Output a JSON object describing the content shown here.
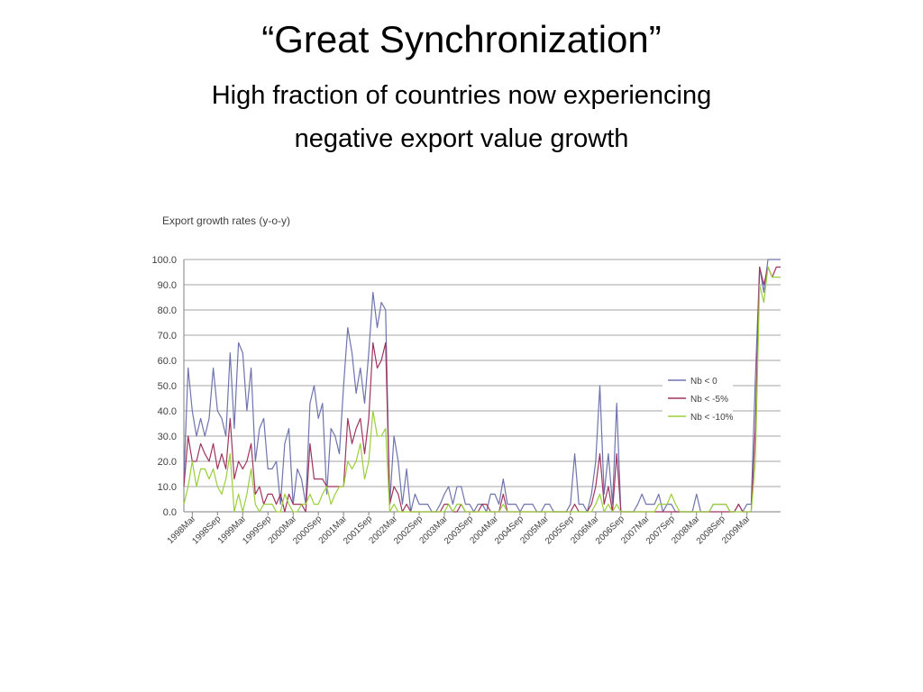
{
  "slide": {
    "title": "“Great Synchronization”",
    "subtitle_line1": "High fraction of countries now experiencing",
    "subtitle_line2": "negative export value growth"
  },
  "chart_data": {
    "type": "line",
    "title": "Export growth rates (y-o-y)",
    "xlabel": "",
    "ylabel": "",
    "ylim": [
      0,
      100
    ],
    "yticks": [
      "0.0",
      "10.0",
      "20.0",
      "30.0",
      "40.0",
      "50.0",
      "60.0",
      "70.0",
      "80.0",
      "90.0",
      "100.0"
    ],
    "grid": true,
    "legend_position": "right",
    "x_tick_labels": [
      "1998Mar",
      "1998Sep",
      "1999Mar",
      "1999Sep",
      "2000Mar",
      "2000Sep",
      "2001Mar",
      "2001Sep",
      "2002Mar",
      "2002Sep",
      "2003Mar",
      "2003Sep",
      "2004Mar",
      "2004Sep",
      "2005Mar",
      "2005Sep",
      "2006Mar",
      "2006Sep",
      "2007Mar",
      "2007Sep",
      "2008Mar",
      "2008Sep",
      "2009Mar"
    ],
    "x_start": "1998-01",
    "x_end": "2009-05",
    "colors": {
      "nb0": "#6f74ad",
      "nb5": "#a0345e",
      "nb10": "#9bcf3a",
      "grid": "#a6a6a6",
      "axis": "#7f7f7f",
      "text": "#404040"
    },
    "series": [
      {
        "name": "Nb < 0",
        "color": "#6f74ad",
        "values": [
          13,
          57,
          40,
          30,
          37,
          30,
          37,
          57,
          40,
          37,
          30,
          63,
          33,
          67,
          63,
          40,
          57,
          20,
          33,
          37,
          17,
          17,
          20,
          3,
          27,
          33,
          3,
          17,
          13,
          3,
          43,
          50,
          37,
          43,
          7,
          33,
          30,
          23,
          50,
          73,
          63,
          47,
          57,
          43,
          63,
          87,
          73,
          83,
          80,
          3,
          30,
          20,
          3,
          17,
          0,
          7,
          3,
          3,
          3,
          0,
          0,
          3,
          7,
          10,
          3,
          10,
          10,
          3,
          3,
          0,
          3,
          3,
          0,
          7,
          7,
          3,
          13,
          3,
          3,
          3,
          0,
          3,
          3,
          3,
          0,
          0,
          3,
          3,
          0,
          0,
          0,
          0,
          3,
          23,
          3,
          3,
          0,
          7,
          20,
          50,
          7,
          23,
          3,
          43,
          0,
          0,
          0,
          0,
          3,
          7,
          3,
          3,
          3,
          7,
          0,
          3,
          3,
          0,
          0,
          0,
          0,
          0,
          7,
          0,
          0,
          0,
          3,
          3,
          3,
          3,
          0,
          0,
          3,
          0,
          3,
          3,
          53,
          97,
          87,
          100,
          100,
          100,
          100
        ]
      },
      {
        "name": "Nb < -5%",
        "color": "#a0345e",
        "values": [
          10,
          30,
          20,
          20,
          27,
          23,
          20,
          27,
          17,
          23,
          17,
          37,
          13,
          20,
          17,
          20,
          27,
          7,
          10,
          3,
          7,
          7,
          3,
          7,
          0,
          7,
          3,
          3,
          3,
          0,
          27,
          13,
          13,
          13,
          10,
          10,
          10,
          10,
          10,
          37,
          27,
          33,
          37,
          23,
          37,
          67,
          57,
          60,
          67,
          3,
          10,
          7,
          0,
          3,
          0,
          0,
          0,
          0,
          0,
          0,
          0,
          0,
          3,
          3,
          0,
          0,
          3,
          0,
          0,
          0,
          0,
          3,
          3,
          0,
          0,
          0,
          7,
          0,
          0,
          0,
          0,
          0,
          0,
          0,
          0,
          0,
          0,
          0,
          0,
          0,
          0,
          0,
          0,
          3,
          0,
          0,
          0,
          3,
          10,
          23,
          3,
          10,
          0,
          23,
          0,
          0,
          0,
          0,
          0,
          0,
          0,
          0,
          0,
          0,
          0,
          0,
          0,
          0,
          0,
          0,
          0,
          0,
          0,
          0,
          0,
          0,
          0,
          0,
          0,
          0,
          0,
          0,
          3,
          0,
          0,
          0,
          33,
          97,
          90,
          97,
          93,
          97,
          97
        ]
      },
      {
        "name": "Nb < -10%",
        "color": "#9bcf3a",
        "values": [
          3,
          10,
          20,
          10,
          17,
          17,
          13,
          17,
          10,
          7,
          13,
          23,
          0,
          7,
          0,
          7,
          17,
          3,
          0,
          3,
          3,
          3,
          0,
          0,
          7,
          3,
          0,
          0,
          3,
          3,
          7,
          3,
          3,
          7,
          10,
          3,
          7,
          10,
          10,
          20,
          17,
          20,
          27,
          13,
          20,
          40,
          30,
          30,
          33,
          0,
          3,
          0,
          0,
          0,
          0,
          0,
          0,
          0,
          0,
          0,
          0,
          0,
          0,
          3,
          0,
          3,
          3,
          0,
          0,
          0,
          0,
          0,
          0,
          0,
          0,
          0,
          3,
          0,
          0,
          0,
          0,
          0,
          0,
          0,
          0,
          0,
          0,
          0,
          0,
          0,
          0,
          0,
          0,
          0,
          0,
          0,
          0,
          0,
          3,
          7,
          0,
          3,
          0,
          3,
          0,
          0,
          0,
          0,
          0,
          0,
          0,
          0,
          0,
          3,
          3,
          3,
          7,
          3,
          0,
          0,
          0,
          0,
          0,
          0,
          0,
          0,
          3,
          3,
          3,
          3,
          0,
          0,
          0,
          0,
          0,
          0,
          20,
          90,
          83,
          97,
          93,
          93,
          93
        ]
      }
    ]
  }
}
